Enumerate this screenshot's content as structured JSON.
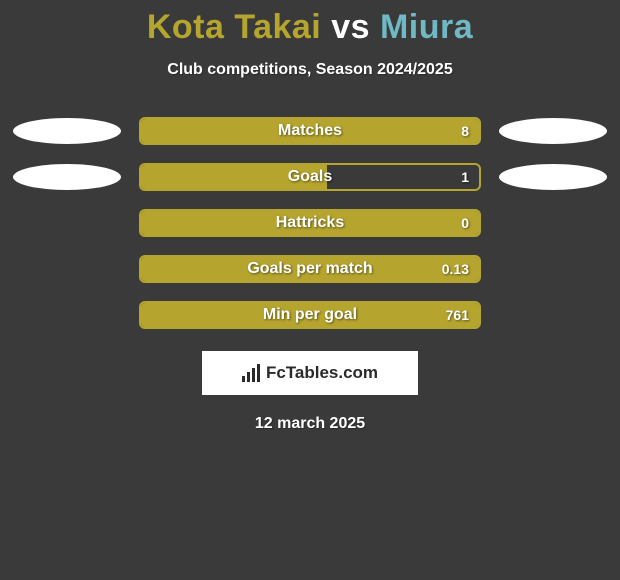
{
  "title": {
    "player1": "Kota Takai",
    "vs": " vs ",
    "player2": "Miura",
    "color_player1": "#b5a52f",
    "color_vs": "#ffffff",
    "color_player2": "#6fb8c4"
  },
  "subtitle": "Club competitions, Season 2024/2025",
  "background_color": "#3a3a3a",
  "bar_border_color": "#b5a52f",
  "bar_fill_color": "#b5a52f",
  "rows": [
    {
      "label": "Matches",
      "value": "8",
      "fill_pct": 100,
      "show_blobs": true
    },
    {
      "label": "Goals",
      "value": "1",
      "fill_pct": 55,
      "show_blobs": true
    },
    {
      "label": "Hattricks",
      "value": "0",
      "fill_pct": 100,
      "show_blobs": false
    },
    {
      "label": "Goals per match",
      "value": "0.13",
      "fill_pct": 100,
      "show_blobs": false
    },
    {
      "label": "Min per goal",
      "value": "761",
      "fill_pct": 100,
      "show_blobs": false
    }
  ],
  "brand": "FcTables.com",
  "date": "12 march 2025",
  "blob_color": "#ffffff",
  "label_fontsize": 16,
  "value_fontsize": 14,
  "title_fontsize": 34,
  "subtitle_fontsize": 16
}
